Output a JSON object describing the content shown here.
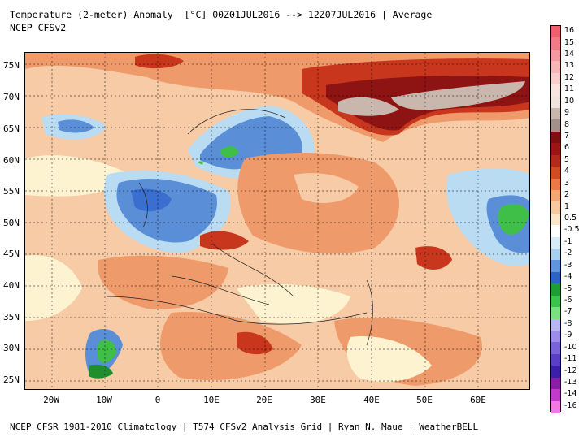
{
  "header": {
    "title_line1": "Temperature (2-meter) Anomaly  [°C] 00Z01JUL2016 --> 12Z07JUL2016 | Average",
    "title_line2": "NCEP CFSv2"
  },
  "footer": {
    "credit": "NCEP CFSR 1981-2010 Climatology | T574 CFSv2 Analysis Grid | Ryan N. Maue | WeatherBELL"
  },
  "map": {
    "lat_labels": [
      "75N",
      "70N",
      "65N",
      "60N",
      "55N",
      "50N",
      "45N",
      "40N",
      "35N",
      "30N",
      "25N"
    ],
    "lon_labels": [
      "20W",
      "10W",
      "0",
      "10E",
      "20E",
      "30E",
      "40E",
      "50E",
      "60E"
    ],
    "colors": {
      "ocean_warm": "#f6c9a0",
      "land_warm": "#ee9a6b",
      "hot": "#c8361e",
      "very_hot": "#8e1414",
      "extreme": "#c9b6ad",
      "neutral": "#fdf3d0",
      "cool": "#b9dcf3",
      "cold": "#5a8fd8",
      "colder": "#3a6fd0",
      "green": "#3fbf47",
      "dark_green": "#1f8f2d"
    }
  },
  "colorbar": {
    "labels": [
      "16",
      "15",
      "14",
      "13",
      "12",
      "11",
      "10",
      "9",
      "8",
      "7",
      "6",
      "5",
      "4",
      "3",
      "2",
      "1",
      "0.5",
      "-0.5",
      "-1",
      "-2",
      "-3",
      "-4",
      "-5",
      "-6",
      "-7",
      "-8",
      "-9",
      "-10",
      "-11",
      "-12",
      "-13",
      "-14",
      "-16"
    ],
    "colors": [
      "#ef5f6e",
      "#f07a86",
      "#f4999f",
      "#f7b6b6",
      "#f9cdcb",
      "#fae2df",
      "#f0e2dc",
      "#c9b6ad",
      "#a58f88",
      "#7e0f0f",
      "#9c1414",
      "#b42a1a",
      "#d14b25",
      "#ea7947",
      "#f4a574",
      "#f8c9a1",
      "#fbe7c7",
      "#ffffff",
      "#d6ebf8",
      "#a6cff0",
      "#5e95dc",
      "#2f62c6",
      "#1e9e32",
      "#3bc44b",
      "#7be07f",
      "#b8b6f2",
      "#9b8de8",
      "#7a63d8",
      "#5b3ec5",
      "#3b1fa8",
      "#8a1fa5",
      "#c43ac8",
      "#f07ae2"
    ]
  }
}
